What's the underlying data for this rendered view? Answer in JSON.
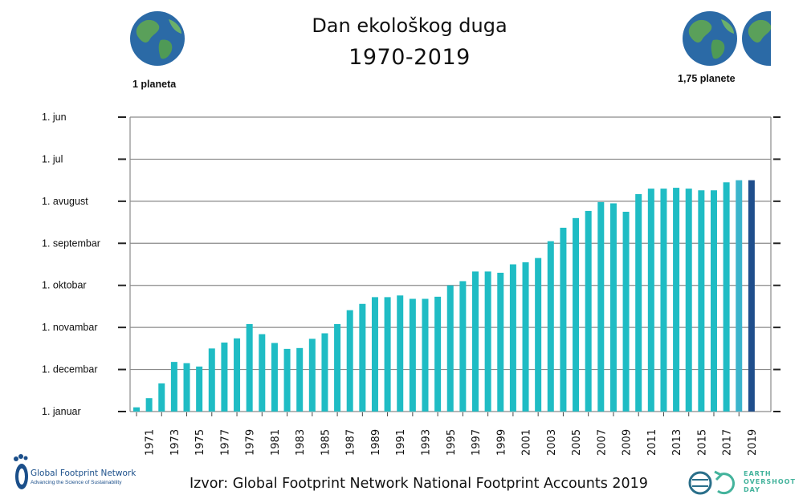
{
  "header": {
    "title": "Dan ekološkog duga",
    "subtitle": "1970-2019"
  },
  "planets": {
    "left_label": "1 planeta",
    "right_label": "1,75 planete"
  },
  "source": "Izvor:  Global Footprint Network National Footprint Accounts 2019",
  "logos": {
    "gfn_name": "Global Footprint Network",
    "gfn_tagline": "Advancing the Science of Sustainability",
    "eod_line1": "EARTH",
    "eod_line2": "OVERSHOOT",
    "eod_line3": "DAY"
  },
  "colors": {
    "bar": "#1fbcc4",
    "bar_2018": "#3bb5cc",
    "bar_2019": "#1f4e8c",
    "grid": "#8a8a8a"
  },
  "chart_data": {
    "type": "bar",
    "title": "Dan ekološkog duga",
    "subtitle": "1970-2019",
    "x": [
      1970,
      1971,
      1972,
      1973,
      1974,
      1975,
      1976,
      1977,
      1978,
      1979,
      1980,
      1981,
      1982,
      1983,
      1984,
      1985,
      1986,
      1987,
      1988,
      1989,
      1990,
      1991,
      1992,
      1993,
      1994,
      1995,
      1996,
      1997,
      1998,
      1999,
      2000,
      2001,
      2002,
      2003,
      2004,
      2005,
      2006,
      2007,
      2008,
      2009,
      2010,
      2011,
      2012,
      2013,
      2014,
      2015,
      2016,
      2017,
      2018,
      2019
    ],
    "x_tick_labels": [
      "1971",
      "1973",
      "1975",
      "1977",
      "1979",
      "1981",
      "1983",
      "1985",
      "1987",
      "1989",
      "1991",
      "1993",
      "1995",
      "1997",
      "1999",
      "2001",
      "2003",
      "2005",
      "2007",
      "2009",
      "2011",
      "2013",
      "2015",
      "2017",
      "2019"
    ],
    "y_tick_labels": [
      "1. januar",
      "1. decembar",
      "1. novambar",
      "1. oktobar",
      "1. septembar",
      "1. avugust",
      "1. jul",
      "1. jun"
    ],
    "y_unit": "months earlier than 1 January (0 = 1. januar, 7 = 1. jun)",
    "ylim": [
      0,
      7
    ],
    "values": [
      0.1,
      0.32,
      0.67,
      1.18,
      1.15,
      1.07,
      1.5,
      1.64,
      1.74,
      2.08,
      1.84,
      1.63,
      1.49,
      1.51,
      1.73,
      1.86,
      2.08,
      2.41,
      2.56,
      2.72,
      2.72,
      2.76,
      2.68,
      2.68,
      2.73,
      3.0,
      3.1,
      3.33,
      3.33,
      3.3,
      3.5,
      3.55,
      3.65,
      4.05,
      4.37,
      4.6,
      4.77,
      4.98,
      4.95,
      4.75,
      5.17,
      5.3,
      5.3,
      5.32,
      5.3,
      5.26,
      5.26,
      5.45,
      5.5,
      5.5
    ],
    "grid": true
  }
}
